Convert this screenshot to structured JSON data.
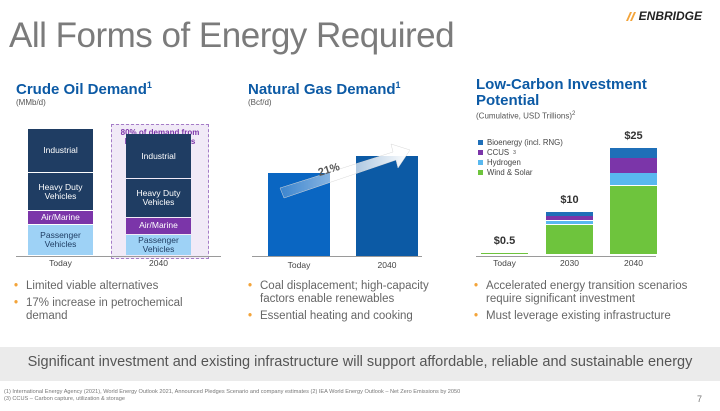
{
  "title": "All Forms of Energy Required",
  "logo": {
    "text": "ENBRIDGE",
    "colors": {
      "mark": "#f3a43a"
    }
  },
  "colors": {
    "brand_blue": "#0c5aa5",
    "navy": "#1f3d63",
    "purple": "#7b35a9",
    "light_blue": "#9ed2f6",
    "green": "#6ec43d",
    "orange": "#f3a43a",
    "annotation_purple": "#7b35a9"
  },
  "crude": {
    "title": "Crude Oil Demand",
    "title_sup": "1",
    "unit": "(MMb/d)",
    "annotation": "80% of demand from hard to abate uses",
    "bars": [
      {
        "label": "Today",
        "segments": [
          {
            "name": "Passenger Vehicles",
            "value": 2.6,
            "color": "lblue"
          },
          {
            "name": "Air/Marine",
            "value": 1.2,
            "color": "purple"
          },
          {
            "name": "Heavy Duty Vehicles",
            "value": 3.2,
            "color": "dark"
          },
          {
            "name": "Industrial",
            "value": 3.8,
            "color": "dark"
          }
        ]
      },
      {
        "label": "2040",
        "segments": [
          {
            "name": "Passenger Vehicles",
            "value": 1.8,
            "color": "lblue"
          },
          {
            "name": "Air/Marine",
            "value": 1.4,
            "color": "purple"
          },
          {
            "name": "Heavy Duty Vehicles",
            "value": 3.3,
            "color": "dark"
          },
          {
            "name": "Industrial",
            "value": 3.8,
            "color": "dark"
          }
        ]
      }
    ],
    "bullets": [
      "Limited viable alternatives",
      "17% increase in petrochemical demand"
    ]
  },
  "gas": {
    "title": "Natural Gas Demand",
    "title_sup": "1",
    "unit": "(Bcf/d)",
    "arrow_label": "21%",
    "bars": [
      {
        "label": "Today",
        "value": 100
      },
      {
        "label": "2040",
        "value": 121
      }
    ],
    "bullets": [
      "Coal displacement; high-capacity factors enable renewables",
      "Essential heating and cooking"
    ]
  },
  "lowcarbon": {
    "title": "Low-Carbon Investment Potential",
    "unit": "(Cumulative, USD Trillions)",
    "unit_sup": "2",
    "legend": [
      {
        "name": "Bioenergy (incl. RNG)",
        "sup": "",
        "color": "#1f6fb8"
      },
      {
        "name": "CCUS",
        "sup": "3",
        "color": "#7b35a9"
      },
      {
        "name": "Hydrogen",
        "sup": "",
        "color": "#59b8ef"
      },
      {
        "name": "Wind & Solar",
        "sup": "",
        "color": "#6ec43d"
      }
    ],
    "bars": [
      {
        "label": "Today",
        "total_label": "$0.5",
        "segments": [
          {
            "name": "Wind & Solar",
            "value": 0.5
          }
        ]
      },
      {
        "label": "2030",
        "total_label": "$10",
        "segments": [
          {
            "name": "Wind & Solar",
            "value": 7
          },
          {
            "name": "Hydrogen",
            "value": 1
          },
          {
            "name": "CCUS",
            "value": 1
          },
          {
            "name": "Bioenergy (incl. RNG)",
            "value": 1
          }
        ]
      },
      {
        "label": "2040",
        "total_label": "$25",
        "segments": [
          {
            "name": "Wind & Solar",
            "value": 16
          },
          {
            "name": "Hydrogen",
            "value": 3
          },
          {
            "name": "CCUS",
            "value": 3.5
          },
          {
            "name": "Bioenergy (incl. RNG)",
            "value": 2.5
          }
        ]
      }
    ],
    "bullets": [
      "Accelerated energy transition scenarios require significant investment",
      "Must leverage existing infrastructure"
    ]
  },
  "banner": "Significant investment and existing infrastructure will support affordable, reliable and sustainable energy",
  "footnotes": [
    "(1) International Energy Agency (2021), World Energy Outlook 2021, Announced Pledges Scenario and company estimates  (2) IEA World Energy Outlook – Net Zero Emissions by 2050",
    "(3) CCUS – Carbon capture, utilization & storage"
  ],
  "page_number": "7"
}
